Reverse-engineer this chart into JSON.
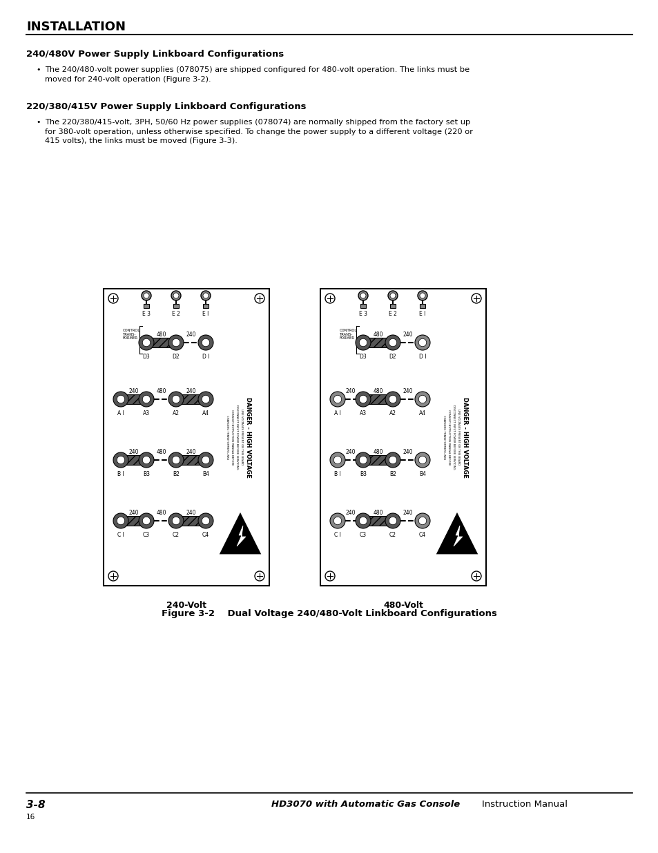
{
  "bg_color": "#ffffff",
  "page_width": 9.54,
  "page_height": 12.35,
  "header_text": "INSTALLATION",
  "section1_title": "240/480V Power Supply Linkboard Configurations",
  "section1_bullet": "The 240/480-volt power supplies (078075) are shipped configured for 480-volt operation. The links must be\nmoved for 240-volt operation (Figure 3-2).",
  "section2_title": "220/380/415V Power Supply Linkboard Configurations",
  "section2_bullet": "The 220/380/415-volt, 3PH, 50/60 Hz power supplies (078074) are normally shipped from the factory set up\nfor 380-volt operation, unless otherwise specified. To change the power supply to a different voltage (220 or\n415 volts), the links must be moved (Figure 3-3).",
  "figure_caption": "Figure 3-2    Dual Voltage 240/480-Volt Linkboard Configurations",
  "left_label": "240-Volt",
  "right_label": "480-Volt",
  "footer_left": "3-8",
  "footer_right_bold": "HD3070 with Automatic Gas Console",
  "footer_right_normal": "Instruction Manual",
  "footer_page": "16"
}
